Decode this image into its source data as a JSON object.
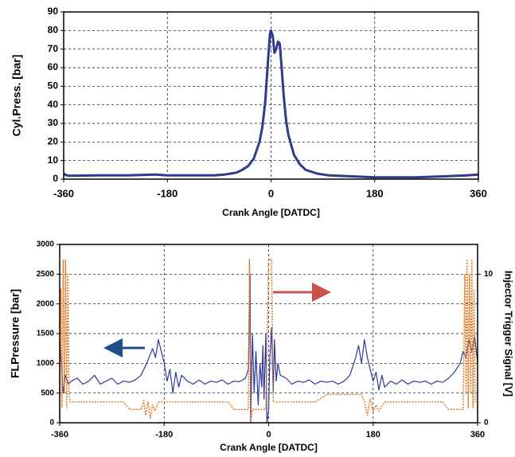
{
  "chart_data": [
    {
      "type": "line",
      "xlabel": "Crank Angle [DATDC]",
      "ylabel": "Cyl.Press. [bar]",
      "xlim": [
        -360,
        360
      ],
      "xticks": [
        -360,
        -180,
        0,
        180,
        360
      ],
      "ylim": [
        0,
        90
      ],
      "yticks": [
        0,
        10,
        20,
        30,
        40,
        50,
        60,
        70,
        80,
        90
      ],
      "grid": true,
      "series": [
        {
          "color": "#2e3a8c",
          "x": [
            -360,
            -355,
            -350,
            -300,
            -250,
            -200,
            -180,
            -150,
            -100,
            -80,
            -60,
            -50,
            -40,
            -30,
            -20,
            -15,
            -10,
            -5,
            -2,
            0,
            3,
            6,
            9,
            12,
            15,
            18,
            22,
            26,
            30,
            40,
            50,
            60,
            80,
            100,
            140,
            180,
            250,
            300,
            340,
            360
          ],
          "values": [
            3,
            2,
            1.8,
            2,
            2,
            2.5,
            2,
            2,
            2,
            2.5,
            3.5,
            5,
            7,
            11,
            20,
            28,
            42,
            65,
            78,
            80,
            77,
            68,
            70,
            74,
            73,
            62,
            45,
            32,
            24,
            13,
            8,
            5,
            3,
            2,
            1.5,
            1,
            1,
            1.5,
            2,
            2.5
          ]
        }
      ]
    },
    {
      "type": "line",
      "xlabel": "Crank Angle [DATDC]",
      "ylabel": "FLPressure [bar]",
      "y2label": "Injector Trigger Signal [V]",
      "xlim": [
        -360,
        360
      ],
      "xticks": [
        -360,
        -180,
        0,
        180,
        360
      ],
      "ylim": [
        0,
        3000
      ],
      "yticks": [
        0,
        500,
        1000,
        1500,
        2000,
        2500,
        3000
      ],
      "y2lim": [
        0,
        12
      ],
      "y2ticks": [
        0,
        10
      ],
      "grid": true,
      "series": [
        {
          "color": "#2b3a9b",
          "x": [
            -360,
            -357,
            -354,
            -350,
            -345,
            -340,
            -330,
            -320,
            -310,
            -300,
            -290,
            -280,
            -270,
            -260,
            -250,
            -240,
            -230,
            -220,
            -210,
            -200,
            -195,
            -190,
            -185,
            -180,
            -175,
            -170,
            -165,
            -160,
            -155,
            -150,
            -140,
            -130,
            -120,
            -110,
            -100,
            -90,
            -80,
            -70,
            -60,
            -50,
            -40,
            -35,
            -32,
            -31,
            -28,
            -25,
            -22,
            -18,
            -15,
            -12,
            -10,
            -8,
            -5,
            -3,
            0,
            2,
            5,
            8,
            10,
            13,
            16,
            20,
            30,
            40,
            50,
            60,
            70,
            80,
            90,
            100,
            110,
            120,
            130,
            140,
            150,
            155,
            160,
            165,
            170,
            175,
            180,
            185,
            190,
            195,
            200,
            210,
            220,
            230,
            240,
            250,
            260,
            270,
            280,
            290,
            300,
            310,
            320,
            330,
            335,
            340,
            345,
            350,
            355,
            360
          ],
          "values": [
            1400,
            1000,
            500,
            800,
            650,
            700,
            750,
            650,
            700,
            800,
            650,
            700,
            750,
            650,
            700,
            680,
            720,
            800,
            1000,
            1250,
            1100,
            1400,
            1200,
            1000,
            700,
            900,
            500,
            850,
            600,
            800,
            700,
            650,
            720,
            650,
            700,
            680,
            720,
            650,
            700,
            690,
            750,
            900,
            2500,
            0,
            1500,
            500,
            1200,
            300,
            1000,
            600,
            1300,
            400,
            1500,
            0,
            200,
            1100,
            1600,
            500,
            1400,
            700,
            1000,
            800,
            750,
            650,
            700,
            680,
            720,
            650,
            700,
            680,
            700,
            650,
            700,
            800,
            1100,
            1300,
            1000,
            1400,
            1100,
            900,
            700,
            850,
            550,
            800,
            600,
            700,
            650,
            720,
            650,
            700,
            680,
            700,
            650,
            700,
            680,
            750,
            850,
            1000,
            1200,
            1100,
            1400,
            1200,
            1450,
            1000
          ]
        },
        {
          "color": "#e07b2a",
          "axis": "y2",
          "dashed": true,
          "x": [
            -360,
            -358,
            -356,
            -354,
            -352,
            -350,
            -348,
            -346,
            -344,
            -342,
            -300,
            -250,
            -240,
            -220,
            -215,
            -212,
            -208,
            -204,
            -200,
            -196,
            -190,
            -100,
            -70,
            -60,
            -35,
            -33,
            -31,
            -28,
            -10,
            -5,
            0,
            2,
            5,
            8,
            80,
            100,
            160,
            165,
            170,
            175,
            180,
            185,
            190,
            200,
            300,
            310,
            335,
            338,
            340,
            342,
            344,
            346,
            348,
            350,
            352,
            354,
            356,
            360
          ],
          "values": [
            0,
            9,
            1,
            11,
            2,
            11,
            1,
            10,
            2,
            1.4,
            1.4,
            1.4,
            0.9,
            0.9,
            1.5,
            0.5,
            1.4,
            0.3,
            1.2,
            0.8,
            1.4,
            1.4,
            1.4,
            0.9,
            0.9,
            11,
            0,
            0.9,
            0.9,
            0.9,
            11,
            11,
            11,
            1.4,
            1.4,
            1.9,
            1.9,
            1.4,
            0.5,
            1.6,
            0.7,
            1.2,
            0.8,
            1.4,
            1.4,
            0.9,
            0.9,
            10,
            2,
            11,
            1,
            10,
            2,
            11,
            1,
            9,
            1.4,
            1.4
          ]
        }
      ]
    }
  ]
}
